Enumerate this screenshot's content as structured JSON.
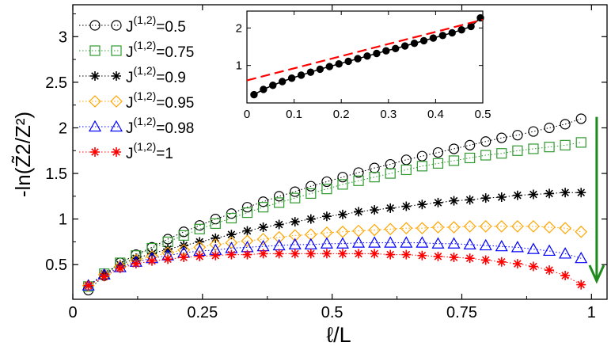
{
  "chart_data": [
    {
      "type": "scatter",
      "title": "",
      "xlabel": "ℓ/L",
      "ylabel": "-ln(Z̃2/Z²)",
      "xlim": [
        0,
        1.03
      ],
      "ylim": [
        0.12,
        3.35
      ],
      "xticks": [
        0,
        0.25,
        0.5,
        0.75,
        1
      ],
      "xtick_labels": [
        "0",
        "0.25",
        "0.5",
        "0.75",
        "1"
      ],
      "yticks": [
        0.5,
        1,
        1.5,
        2,
        2.5,
        3
      ],
      "ytick_labels": [
        "0.5",
        "1",
        "1.5",
        "2",
        "2.5",
        "3"
      ],
      "legend_position": "top-left",
      "x": [
        0.03,
        0.0606,
        0.0913,
        0.1219,
        0.1526,
        0.1832,
        0.2139,
        0.2445,
        0.2751,
        0.3058,
        0.3364,
        0.3671,
        0.3977,
        0.4284,
        0.459,
        0.4897,
        0.5203,
        0.5509,
        0.5816,
        0.6122,
        0.6429,
        0.6735,
        0.7042,
        0.7348,
        0.7655,
        0.7961,
        0.8267,
        0.8574,
        0.888,
        0.9187,
        0.9493,
        0.98
      ],
      "series": [
        {
          "name_prefix": "J",
          "name_sup": "(1,2)",
          "name_value": "=0.5",
          "marker": "circle",
          "color": "#000000",
          "values": [
            0.22,
            0.38,
            0.52,
            0.61,
            0.69,
            0.78,
            0.86,
            0.93,
            1.0,
            1.06,
            1.13,
            1.19,
            1.25,
            1.3,
            1.36,
            1.41,
            1.46,
            1.51,
            1.56,
            1.6,
            1.65,
            1.69,
            1.73,
            1.77,
            1.81,
            1.85,
            1.89,
            1.92,
            1.96,
            2.0,
            2.04,
            2.1
          ]
        },
        {
          "name_prefix": "J",
          "name_sup": "(1,2)",
          "name_value": "=0.75",
          "marker": "square",
          "color": "#2e9a2e",
          "values": [
            0.26,
            0.4,
            0.52,
            0.6,
            0.68,
            0.75,
            0.82,
            0.89,
            0.95,
            1.01,
            1.07,
            1.13,
            1.18,
            1.23,
            1.28,
            1.33,
            1.38,
            1.42,
            1.46,
            1.5,
            1.54,
            1.58,
            1.61,
            1.64,
            1.67,
            1.7,
            1.72,
            1.75,
            1.77,
            1.79,
            1.81,
            1.84
          ]
        },
        {
          "name_prefix": "J",
          "name_sup": "(1,2)",
          "name_value": "=0.9",
          "marker": "star",
          "color": "#000000",
          "values": [
            0.27,
            0.4,
            0.5,
            0.57,
            0.62,
            0.67,
            0.71,
            0.75,
            0.79,
            0.83,
            0.87,
            0.91,
            0.94,
            0.97,
            1.0,
            1.03,
            1.05,
            1.08,
            1.1,
            1.12,
            1.14,
            1.16,
            1.18,
            1.2,
            1.21,
            1.23,
            1.24,
            1.26,
            1.27,
            1.28,
            1.29,
            1.29
          ]
        },
        {
          "name_prefix": "J",
          "name_sup": "(1,2)",
          "name_value": "=0.95",
          "marker": "diamond",
          "color": "#ffa500",
          "values": [
            0.27,
            0.39,
            0.48,
            0.55,
            0.59,
            0.63,
            0.66,
            0.69,
            0.72,
            0.74,
            0.76,
            0.78,
            0.8,
            0.82,
            0.83,
            0.85,
            0.86,
            0.87,
            0.88,
            0.89,
            0.9,
            0.9,
            0.91,
            0.91,
            0.92,
            0.92,
            0.92,
            0.92,
            0.92,
            0.91,
            0.9,
            0.86
          ]
        },
        {
          "name_prefix": "J",
          "name_sup": "(1,2)",
          "name_value": "=0.98",
          "marker": "triangle",
          "color": "#0000ff",
          "values": [
            0.27,
            0.39,
            0.47,
            0.53,
            0.57,
            0.6,
            0.63,
            0.65,
            0.66,
            0.68,
            0.69,
            0.7,
            0.71,
            0.72,
            0.72,
            0.73,
            0.73,
            0.74,
            0.74,
            0.74,
            0.74,
            0.74,
            0.73,
            0.73,
            0.72,
            0.71,
            0.7,
            0.69,
            0.67,
            0.65,
            0.62,
            0.57
          ]
        },
        {
          "name_prefix": "J",
          "name_sup": "(1,2)",
          "name_value": "=1",
          "marker": "star",
          "color": "#ff0000",
          "values": [
            0.27,
            0.37,
            0.46,
            0.51,
            0.54,
            0.56,
            0.58,
            0.59,
            0.6,
            0.61,
            0.61,
            0.62,
            0.62,
            0.62,
            0.62,
            0.62,
            0.62,
            0.62,
            0.62,
            0.61,
            0.61,
            0.6,
            0.59,
            0.58,
            0.57,
            0.55,
            0.53,
            0.51,
            0.48,
            0.44,
            0.38,
            0.28
          ]
        }
      ],
      "annotation": {
        "type": "arrow",
        "direction": "down",
        "color": "#1e8a1e",
        "x": 1.01,
        "y_from": 2.12,
        "y_to": 0.32
      }
    },
    {
      "type": "scatter",
      "title": "",
      "xlabel": "",
      "ylabel": "",
      "xlim": [
        0,
        0.5
      ],
      "ylim": [
        0,
        2.45
      ],
      "xticks": [
        0,
        0.1,
        0.2,
        0.3,
        0.4,
        0.5
      ],
      "xtick_labels": [
        "0",
        "0.1",
        "0.2",
        "0.3",
        "0.4",
        "0.5"
      ],
      "yticks": [
        1,
        2
      ],
      "ytick_labels": [
        "1",
        "2"
      ],
      "series": [
        {
          "marker": "filled-circle",
          "color": "#000000",
          "x": [
            0.015,
            0.035,
            0.055,
            0.075,
            0.095,
            0.115,
            0.135,
            0.155,
            0.175,
            0.195,
            0.215,
            0.235,
            0.255,
            0.275,
            0.295,
            0.315,
            0.335,
            0.355,
            0.375,
            0.395,
            0.415,
            0.435,
            0.455,
            0.475,
            0.495
          ],
          "values": [
            0.22,
            0.36,
            0.47,
            0.57,
            0.66,
            0.74,
            0.82,
            0.9,
            0.97,
            1.04,
            1.11,
            1.18,
            1.25,
            1.32,
            1.39,
            1.45,
            1.52,
            1.59,
            1.66,
            1.73,
            1.8,
            1.87,
            1.95,
            2.04,
            2.27
          ]
        }
      ],
      "fit_line": {
        "style": "dashed",
        "color": "#ff0000",
        "x": [
          0,
          0.5
        ],
        "y": [
          0.6,
          2.22
        ]
      }
    }
  ]
}
